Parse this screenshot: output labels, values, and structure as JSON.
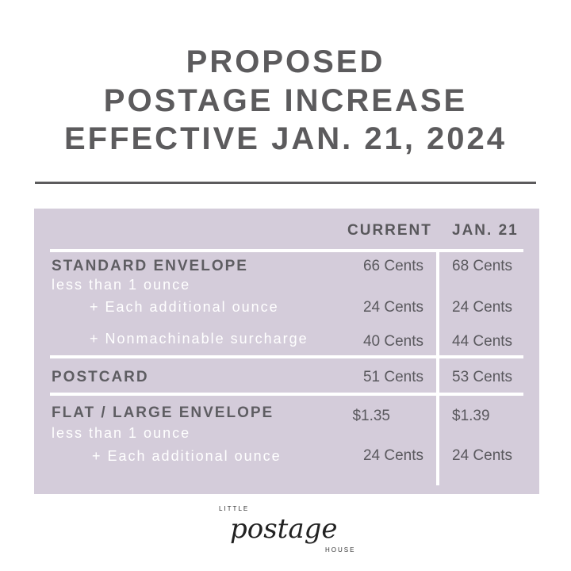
{
  "title": {
    "line1": "PROPOSED",
    "line2": "POSTAGE INCREASE",
    "line3": "EFFECTIVE JAN. 21, 2024"
  },
  "table": {
    "headers": {
      "current": "CURRENT",
      "new": "JAN. 21"
    },
    "standard": {
      "label": "STANDARD ENVELOPE",
      "sub": "less than 1 ounce",
      "current": "66 Cents",
      "new": "68 Cents",
      "additional": {
        "label": "+ Each additional ounce",
        "current": "24 Cents",
        "new": "24 Cents"
      },
      "nonmachinable": {
        "label": "+ Nonmachinable surcharge",
        "current": "40 Cents",
        "new": "44 Cents"
      }
    },
    "postcard": {
      "label": "POSTCARD",
      "current": "51 Cents",
      "new": "53 Cents"
    },
    "flat": {
      "label": "FLAT / LARGE ENVELOPE",
      "sub": "less than 1 ounce",
      "current": "$1.35",
      "new": "$1.39",
      "additional": {
        "label": "+ Each additional ounce",
        "current": "24 Cents",
        "new": "24 Cents"
      }
    }
  },
  "logo": {
    "top": "LITTLE",
    "script": "postage",
    "bottom": "HOUSE"
  },
  "colors": {
    "panel": "#d4ccda",
    "text": "#5c5b5d"
  }
}
